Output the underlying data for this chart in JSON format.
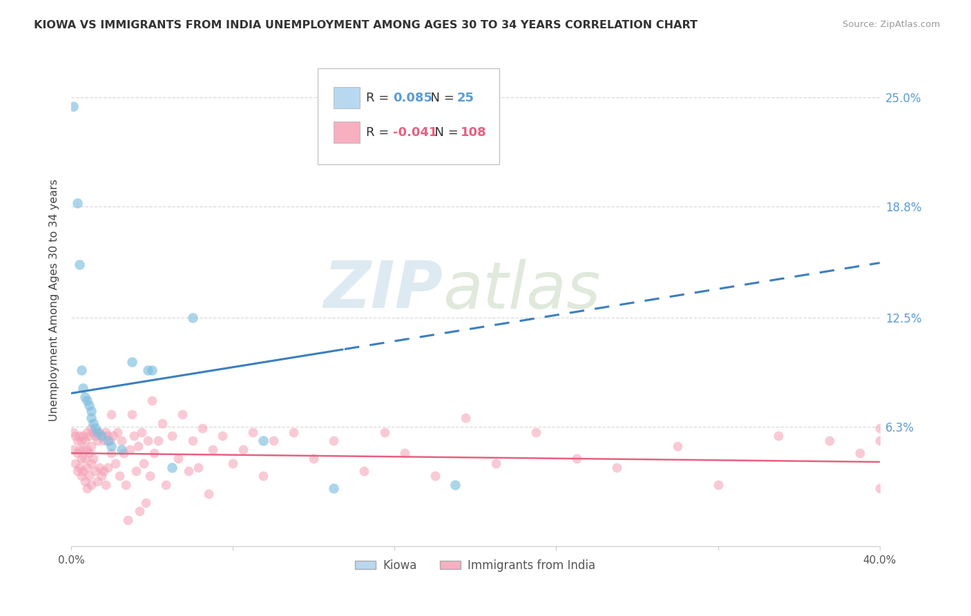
{
  "title": "KIOWA VS IMMIGRANTS FROM INDIA UNEMPLOYMENT AMONG AGES 30 TO 34 YEARS CORRELATION CHART",
  "source": "Source: ZipAtlas.com",
  "ylabel": "Unemployment Among Ages 30 to 34 years",
  "xlim": [
    0.0,
    0.4
  ],
  "ylim": [
    -0.005,
    0.275
  ],
  "ytick_right_vals": [
    0.063,
    0.125,
    0.188,
    0.25
  ],
  "ytick_right_labels": [
    "6.3%",
    "12.5%",
    "18.8%",
    "25.0%"
  ],
  "kiowa_R": 0.085,
  "kiowa_N": 25,
  "india_R": -0.041,
  "india_N": 108,
  "kiowa_color": "#7fbfdf",
  "india_color": "#f5a0b5",
  "kiowa_line_color": "#3a7fc1",
  "india_line_color": "#e86080",
  "kiowa_line_solid_end": 0.135,
  "kiowa_line_y0": 0.082,
  "kiowa_line_y1_solid": 0.107,
  "kiowa_line_y1_dashed": 0.13,
  "india_line_y0": 0.048,
  "india_line_y1": 0.043,
  "grid_color": "#d0d0d0",
  "legend_box_kiowa": "#b8d8f0",
  "legend_box_india": "#f8b0c0",
  "kiowa_x": [
    0.001,
    0.003,
    0.004,
    0.005,
    0.006,
    0.007,
    0.008,
    0.009,
    0.01,
    0.01,
    0.011,
    0.012,
    0.013,
    0.015,
    0.018,
    0.02,
    0.025,
    0.03,
    0.038,
    0.04,
    0.05,
    0.06,
    0.095,
    0.13,
    0.19
  ],
  "kiowa_y": [
    0.245,
    0.19,
    0.155,
    0.095,
    0.085,
    0.08,
    0.078,
    0.075,
    0.072,
    0.068,
    0.065,
    0.062,
    0.06,
    0.058,
    0.055,
    0.052,
    0.05,
    0.1,
    0.095,
    0.095,
    0.04,
    0.125,
    0.055,
    0.028,
    0.03
  ],
  "india_x": [
    0.001,
    0.001,
    0.002,
    0.002,
    0.003,
    0.003,
    0.003,
    0.004,
    0.004,
    0.004,
    0.005,
    0.005,
    0.005,
    0.006,
    0.006,
    0.006,
    0.007,
    0.007,
    0.007,
    0.008,
    0.008,
    0.008,
    0.008,
    0.009,
    0.009,
    0.009,
    0.01,
    0.01,
    0.01,
    0.01,
    0.011,
    0.011,
    0.012,
    0.012,
    0.013,
    0.013,
    0.014,
    0.014,
    0.015,
    0.015,
    0.016,
    0.016,
    0.017,
    0.017,
    0.018,
    0.018,
    0.019,
    0.02,
    0.02,
    0.021,
    0.022,
    0.023,
    0.024,
    0.025,
    0.026,
    0.027,
    0.028,
    0.029,
    0.03,
    0.031,
    0.032,
    0.033,
    0.034,
    0.035,
    0.036,
    0.037,
    0.038,
    0.039,
    0.04,
    0.041,
    0.043,
    0.045,
    0.047,
    0.05,
    0.053,
    0.055,
    0.058,
    0.06,
    0.063,
    0.065,
    0.068,
    0.07,
    0.075,
    0.08,
    0.085,
    0.09,
    0.095,
    0.1,
    0.11,
    0.12,
    0.13,
    0.145,
    0.155,
    0.165,
    0.18,
    0.195,
    0.21,
    0.23,
    0.25,
    0.27,
    0.3,
    0.32,
    0.35,
    0.375,
    0.39,
    0.4,
    0.4,
    0.4
  ],
  "india_y": [
    0.06,
    0.05,
    0.058,
    0.042,
    0.055,
    0.048,
    0.038,
    0.058,
    0.05,
    0.04,
    0.055,
    0.045,
    0.035,
    0.058,
    0.05,
    0.038,
    0.055,
    0.045,
    0.032,
    0.06,
    0.05,
    0.04,
    0.028,
    0.058,
    0.048,
    0.035,
    0.062,
    0.052,
    0.042,
    0.03,
    0.06,
    0.045,
    0.058,
    0.038,
    0.055,
    0.032,
    0.06,
    0.04,
    0.058,
    0.035,
    0.055,
    0.038,
    0.06,
    0.03,
    0.058,
    0.04,
    0.055,
    0.07,
    0.048,
    0.058,
    0.042,
    0.06,
    0.035,
    0.055,
    0.048,
    0.03,
    0.01,
    0.05,
    0.07,
    0.058,
    0.038,
    0.052,
    0.015,
    0.06,
    0.042,
    0.02,
    0.055,
    0.035,
    0.078,
    0.048,
    0.055,
    0.065,
    0.03,
    0.058,
    0.045,
    0.07,
    0.038,
    0.055,
    0.04,
    0.062,
    0.025,
    0.05,
    0.058,
    0.042,
    0.05,
    0.06,
    0.035,
    0.055,
    0.06,
    0.045,
    0.055,
    0.038,
    0.06,
    0.048,
    0.035,
    0.068,
    0.042,
    0.06,
    0.045,
    0.04,
    0.052,
    0.03,
    0.058,
    0.055,
    0.048,
    0.062,
    0.028,
    0.055
  ]
}
